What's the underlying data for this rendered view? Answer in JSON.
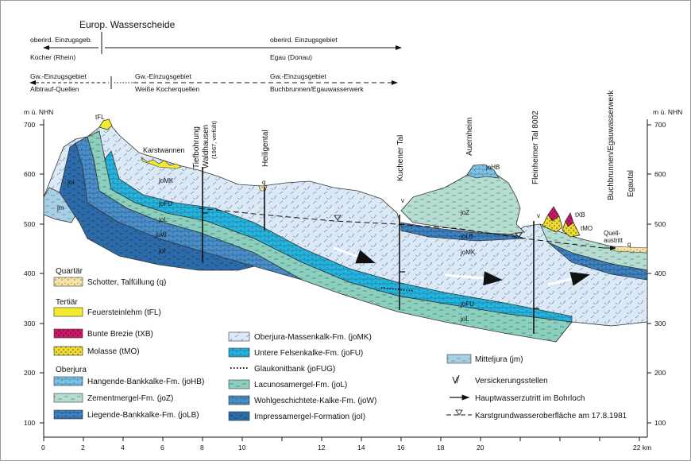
{
  "header": {
    "watershed_title": "Europ. Wasserscheide",
    "surface_left_line1": "oberird. Einzugsgeb.",
    "surface_left_line2": "Kocher (Rhein)",
    "surface_right_line1": "oberird. Einzugsgebiet",
    "surface_right_line2": "Egau (Donau)",
    "gw_a_line1": "Gw.-Einzugsgebiet",
    "gw_a_line2": "Albtrauf-Quellen",
    "gw_b_line1": "Gw.-Einzugsgebiet",
    "gw_b_line2": "Weiße Kocherquellen",
    "gw_c_line1": "Gw.-Einzugsgebiet",
    "gw_c_line2": "Buchbrunnen/Egauwasserwerk"
  },
  "axes": {
    "y_unit_left": "m ü. NHN",
    "y_unit_right": "m ü. NHN",
    "y_ticks": [
      "700",
      "600",
      "500",
      "400",
      "300",
      "200",
      "100"
    ],
    "x_ticks": [
      "0",
      "2",
      "4",
      "6",
      "8",
      "10",
      "12",
      "14",
      "16",
      "18",
      "20",
      "22 km"
    ]
  },
  "locations": {
    "tiefbohrung_1": "Tiefbohrung",
    "tiefbohrung_2": "Waldhausen",
    "tiefbohrung_3": "(1967, verfüllt)",
    "heiligental": "Heiligental",
    "kuchener_tal": "Kuchener Tal",
    "auernheim": "Auernheim",
    "fleinheimer": "Fleinheimer Tal 8002",
    "buchbrunnen": "Buchbrunnen/Egauwasserwerk",
    "egautal": "Egautal"
  },
  "section_labels": {
    "tFL": "tFL",
    "karstwannen": "Karstwannen",
    "joMK_1": "joMK",
    "joMK_2": "joMK",
    "joHB": "joHB",
    "joZ": "joZ",
    "joLB": "joLB",
    "joFU_1": "joFU",
    "joFU_2": "joFU",
    "joL_1": "joL",
    "joL_2": "joL",
    "joW": "joW",
    "joI_1": "joI",
    "joI_2": "joI",
    "jm": "jm",
    "tXB": "tXB",
    "tMO": "tMO",
    "quell_1": "Quell-",
    "quell_2": "austritt",
    "q_1": "q",
    "q_2": "q",
    "v_1": "v",
    "v_2": "v"
  },
  "legend": {
    "quartaer_title": "Quartär",
    "tertiaer_title": "Tertiär",
    "oberjura_title": "Oberjura",
    "items": {
      "schotter": "Schotter, Talfüllung (q)",
      "feuerstein": "Feuersteinlehm (tFL)",
      "bunte": "Bunte Brezie (tXB)",
      "molasse": "Molasse (tMO)",
      "joHB": "Hangende-Bankkalke-Fm. (joHB)",
      "joZ": "Zementmergel-Fm. (joZ)",
      "joLB": "Liegende-Bankkalke-Fm. (joLB)",
      "joMK": "Oberjura-Massenkalk-Fm. (joMK)",
      "joFU": "Untere Felsenkalke-Fm. (joFU)",
      "joFUG": "Glaukonitbank (joFUG)",
      "joL": "Lacunosamergel-Fm. (joL)",
      "joW": "Wohlgeschichtete-Kalke-Fm. (joW)",
      "joI": "Impressamergel-Formation (joI)",
      "jm": "Mitteljura (jm)",
      "versickerung": "Versickerungsstellen",
      "wasserzutritt": "Hauptwasserzutritt im Bohrloch",
      "karstgw": "Karstgrundwasseroberfläche am 17.8.1981"
    }
  },
  "colors": {
    "joMK": "#dbe9f7",
    "joHB": "#7fc4e6",
    "joZ": "#b7ddd2",
    "joLB": "#3e82c0",
    "joFU": "#27b4dc",
    "joL": "#8dcfbe",
    "joW": "#4a8fc7",
    "joI": "#2d6aa8",
    "jm": "#a9cfe4",
    "feuerstein": "#f3ea2e",
    "bunte": "#c9186e",
    "molasse": "#f0dc30",
    "schotter": "#f7e4a6"
  }
}
